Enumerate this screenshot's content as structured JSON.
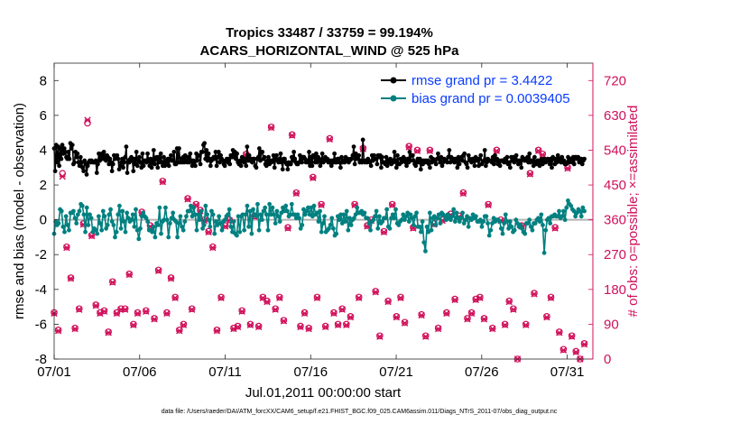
{
  "chart_data": {
    "type": "line",
    "title": "Tropics 33487 / 33759 = 99.194%",
    "subtitle": "ACARS_HORIZONTAL_WIND @ 525 hPa",
    "xlabel": "Jul.01,2011 00:00:00 start",
    "ylabel_left": "rmse and bias (model - observation)",
    "ylabel_right": "# of obs: o=possible; ×=assimilated",
    "footnote": "data file: /Users/raeder/DAI/ATM_forcXX/CAM6_setup/f.e21.FHIST_BGC.f09_025.CAM6assim.011/Diags_NTrS_2011-07/obs_diag_output.nc",
    "xlim": [
      0,
      31.5
    ],
    "ylim_left": [
      -8,
      9
    ],
    "ylim_right": [
      0,
      765
    ],
    "x_ticks": [
      0,
      5,
      10,
      15,
      20,
      25,
      30
    ],
    "x_tick_labels": [
      "07/01",
      "07/06",
      "07/11",
      "07/16",
      "07/21",
      "07/26",
      "07/31"
    ],
    "y_ticks_left": [
      -8,
      -6,
      -4,
      -2,
      0,
      2,
      4,
      6,
      8
    ],
    "y_tick_labels_left": [
      "-8",
      "-6",
      "-4",
      "-2",
      "0",
      "2",
      "4",
      "6",
      "8"
    ],
    "y_ticks_right": [
      0,
      90,
      180,
      270,
      360,
      450,
      540,
      630,
      720
    ],
    "y_tick_labels_right": [
      "0",
      "90",
      "180",
      "270",
      "360",
      "450",
      "540",
      "630",
      "720"
    ],
    "legend": [
      {
        "label": "rmse grand pr = 3.4422",
        "color": "#000000"
      },
      {
        "label": "bias grand pr = 0.0039405",
        "color": "#008080"
      }
    ],
    "colors": {
      "rmse": "#000000",
      "bias": "#008080",
      "obs": "#d0105a",
      "zero": "#b4b4b4",
      "right_axis": "#d0105a"
    },
    "x_step_days": 0.25,
    "series": [
      {
        "name": "rmse",
        "axis": "left",
        "values": [
          4.1,
          2.8,
          4.3,
          3.3,
          4.2,
          3.1,
          4.1,
          3.5,
          4.3,
          3.8,
          4.1,
          3.9,
          3.6,
          3.5,
          3.9,
          3.5,
          4.4,
          4.1,
          4.3,
          3.2,
          3.3,
          3.9,
          3.6,
          3.8,
          3.3,
          3.1,
          3.6,
          3.3,
          3.0,
          2.8,
          3.4,
          3.2,
          2.6,
          3.1,
          3.3,
          3.4,
          3.3,
          3.4,
          3.3,
          3.3,
          3.3,
          3.4,
          2.7,
          3.2,
          3.8,
          3.4,
          3.7,
          3.8,
          3.5,
          3.9,
          3.6,
          3.4,
          3.7,
          3.6,
          3.2,
          3.5,
          3.3,
          2.8,
          3.2,
          3.7,
          3.5,
          3.6,
          3.7,
          3.5,
          2.9,
          3.1,
          3.3,
          3.5,
          3.0,
          3.3,
          3.6,
          4.2,
          2.7,
          3.4,
          3.3,
          3.5,
          3.6,
          3.4,
          2.8,
          3.5,
          3.2,
          3.9,
          3.1,
          3.4,
          3.6,
          3.3,
          3.0,
          3.8,
          3.1,
          3.4,
          3.4,
          3.3,
          3.8,
          3.4,
          3.1,
          3.5,
          3.0,
          3.3,
          4.0,
          3.2,
          3.5,
          3.6,
          3.0,
          3.6,
          3.3,
          3.8,
          3.3,
          3.1,
          3.6,
          3.1,
          3.4,
          3.2,
          3.5,
          3.1,
          3.5,
          3.7,
          3.4,
          3.4,
          3.9,
          3.2,
          3.2,
          4.1,
          3.3,
          4.1,
          3.3,
          3.5,
          3.3,
          3.6,
          3.3,
          3.7,
          3.4,
          3.3,
          3.6,
          3.3,
          3.8,
          3.4,
          3.1,
          3.4,
          3.3,
          3.1,
          3.8,
          3.4,
          3.7,
          3.7,
          3.2,
          3.9,
          3.9,
          4.3,
          4.4,
          3.5,
          4.0,
          3.4,
          3.8,
          3.5,
          3.1,
          3.4,
          3.5,
          3.6,
          3.5,
          3.9,
          3.1,
          3.6,
          3.9,
          3.3,
          3.7,
          3.5,
          3.4,
          3.2,
          3.1,
          3.4,
          3.5,
          3.3,
          3.5,
          3.2,
          3.7,
          3.6,
          4.0,
          3.6,
          3.9,
          3.5,
          3.8,
          3.3,
          3.2,
          3.4,
          3.1,
          3.6,
          3.4,
          3.3,
          3.5,
          3.1,
          4.2,
          3.4,
          3.7,
          3.4,
          3.5,
          3.3,
          3.5,
          3.5,
          3.1,
          3.0,
          3.5,
          3.6,
          4.1,
          3.4,
          3.9,
          3.9,
          3.5,
          3.6,
          3.2,
          3.1,
          3.4,
          3.6,
          3.2,
          3.4,
          3.3,
          3.4,
          3.7,
          3.0,
          3.5,
          3.7,
          3.4,
          3.3,
          3.5,
          3.8,
          3.3,
          2.9,
          3.5,
          3.5,
          3.3,
          3.2,
          2.9,
          3.3,
          3.2,
          3.2,
          3.6,
          3.4,
          3.9,
          3.5,
          3.3,
          3.2,
          3.2,
          3.3,
          3.7,
          3.5,
          3.3,
          3.6,
          3.6,
          3.5,
          3.3,
          3.4,
          3.3,
          3.9,
          3.1,
          3.6,
          3.1,
          3.7,
          3.6,
          3.3,
          3.8,
          3.3,
          3.6,
          3.5,
          3.1,
          3.3,
          3.8,
          3.3,
          3.4,
          3.6,
          3.4,
          3.5,
          3.3,
          3.3,
          3.4,
          3.1,
          3.4,
          3.3,
          3.8,
          3.3,
          3.3,
          3.5,
          3.5,
          3.3,
          3.0,
          3.6,
          3.3,
          3.4,
          3.3,
          3.6,
          3.4,
          3.5,
          3.3,
          3.4,
          3.5,
          3.5,
          3.7,
          4.2,
          3.2,
          3.8,
          3.5,
          3.5,
          3.7,
          3.3,
          3.4,
          3.3,
          4.6,
          3.4,
          3.3,
          3.4,
          3.3,
          3.5,
          3.4,
          3.3,
          3.1,
          3.7,
          3.4,
          3.7,
          3.5,
          3.5,
          3.2,
          3.7,
          3.6,
          3.7,
          3.0,
          3.6,
          3.3,
          3.3,
          3.2,
          3.6,
          3.1,
          3.4,
          3.3,
          3.5,
          3.2,
          3.4,
          3.3,
          3.9,
          3.4,
          3.0,
          3.7,
          3.2,
          3.2,
          3.5,
          3.3,
          3.4,
          3.6,
          3.5,
          3.3,
          3.1,
          3.5,
          3.3,
          3.9,
          3.4,
          3.7,
          3.7,
          3.4,
          3.2,
          3.1,
          3.3,
          3.5,
          3.3,
          3.5,
          2.9,
          3.4,
          3.2,
          3.4,
          3.3,
          3.4,
          3.3,
          3.4,
          3.2,
          3.0,
          3.6,
          3.3,
          3.5,
          3.4,
          3.4,
          3.2,
          3.5,
          3.8,
          3.5,
          3.3,
          3.6,
          3.1,
          3.3,
          3.5,
          3.4,
          3.4,
          3.3,
          3.6,
          4.0,
          3.3,
          3.6,
          3.4,
          3.5,
          3.3,
          3.5,
          3.4,
          3.0,
          3.6,
          3.2,
          3.5,
          3.6,
          3.4,
          3.7,
          3.8,
          3.3,
          3.2,
          3.0,
          3.7,
          3.5,
          3.4,
          3.3,
          3.5,
          3.5,
          3.1,
          3.6,
          3.4,
          3.5,
          3.1,
          3.5,
          3.7,
          3.2,
          3.3,
          3.4,
          4.0,
          3.1,
          3.3,
          3.5,
          3.4,
          3.4,
          3.4,
          3.3,
          3.6,
          3.2,
          3.7,
          3.4,
          3.5,
          3.2,
          3.4,
          3.1,
          3.4,
          3.4,
          3.4,
          3.3,
          3.5,
          3.3,
          3.6,
          3.2,
          3.3,
          3.0,
          3.6,
          3.4,
          3.6,
          3.3,
          3.5,
          3.7,
          3.4,
          3.2,
          3.4,
          3.4,
          3.0,
          3.6,
          3.5,
          3.4,
          3.5,
          3.4,
          3.6,
          3.3,
          3.8,
          3.3,
          3.4,
          3.4,
          3.1,
          3.6,
          3.3,
          3.2,
          3.4,
          3.4,
          3.1,
          3.4,
          3.5,
          3.2,
          3.4,
          3.5,
          3.3,
          3.4,
          3.5,
          3.4,
          3.2,
          3.5,
          3.0,
          3.6,
          3.5,
          3.2,
          3.5,
          3.3,
          3.7,
          3.4,
          3.5,
          3.3,
          3.6,
          3.3,
          3.4,
          3.2,
          3.2,
          3.3,
          3.6,
          3.3,
          3.5,
          3.5,
          3.3,
          3.6,
          3.2,
          3.6,
          3.6,
          3.5,
          3.6,
          3.3,
          3.4,
          3.5,
          3.2,
          3.4,
          3.5
        ]
      },
      {
        "name": "bias",
        "axis": "left",
        "values": [
          -0.8,
          -0.1,
          -0.3,
          -0.2,
          0.6,
          0.5,
          -0.4,
          -0.7,
          0.2,
          -0.3,
          -0.6,
          0.4,
          0.4,
          0.5,
          0.1,
          -0.2,
          0.3,
          0.5,
          0.9,
          0.8,
          0.3,
          -0.7,
          0.7,
          -0.3,
          0.3,
          0.1,
          -0.7,
          -0.5,
          -0.6,
          -0.8,
          0.2,
          -0.2,
          -0.6,
          0.5,
          0.2,
          -0.5,
          -0.3,
          0.3,
          0.6,
          -0.1,
          -0.3,
          -1.0,
          -0.7,
          0.3,
          0.8,
          -0.5,
          0.5,
          -0.1,
          -0.7,
          0.4,
          0.1,
          -0.1,
          0.0,
          0.3,
          -0.4,
          0.6,
          -0.6,
          -1.1,
          -0.5,
          0.2,
          0.4,
          0.2,
          0.1,
          -0.1,
          -0.6,
          -0.6,
          -0.7,
          -0.4,
          -1.0,
          -0.2,
          -0.3,
          0.7,
          -0.8,
          -0.1,
          0.0,
          0.7,
          0.0,
          -1.0,
          -0.2,
          0.1,
          0.4,
          0.0,
          -0.1,
          -1.0,
          -0.2,
          0.2,
          -0.4,
          -0.6,
          -0.1,
          0.2,
          0.5,
          0.5,
          0.8,
          0.2,
          0.7,
          0.3,
          -0.6,
          0.3,
          0.0,
          0.5,
          -0.5,
          -0.3,
          0.8,
          0.3,
          0.0,
          -0.4,
          0.5,
          0.3,
          -0.8,
          -0.1,
          -0.3,
          0.2,
          -0.2,
          -0.6,
          -0.1,
          0.0,
          0.2,
          0.3,
          0.6,
          -0.4,
          -0.7,
          -0.1,
          -0.8,
          -0.9,
          0.2,
          -0.7,
          0.2,
          0.3,
          -0.6,
          0.3,
          0.8,
          -0.4,
          0.5,
          -0.8,
          0.6,
          0.3,
          0.2,
          0.9,
          -0.6,
          0.3,
          0.0,
          0.5,
          0.7,
          0.3,
          -0.6,
          0.9,
          0.3,
          0.7,
          0.3,
          -0.2,
          0.5,
          0.2,
          -0.1,
          0.4,
          0.7,
          0.5,
          0.8,
          0.5,
          0.2,
          0.3,
          0.9,
          0.3,
          0.3,
          0.1,
          0.3,
          0.1,
          -0.5,
          -0.3,
          0.6,
          0.3,
          0.5,
          0.7,
          0.3,
          0.7,
          0.2,
          0.8,
          0.3,
          0.4,
          -0.1,
          0.5,
          -0.7,
          -0.2,
          0.2,
          -0.7,
          -0.6,
          -0.5,
          -0.3,
          0.1,
          -0.5,
          -0.9,
          -0.8,
          0.2,
          0.0,
          0.3,
          -0.2,
          0.3,
          -0.1,
          0.5,
          -0.6,
          0.1,
          -0.3,
          0.0,
          0.1,
          0.3,
          0.7,
          0.4,
          0.4,
          0.5,
          0.3,
          0.4,
          0.1,
          0.1,
          -0.2,
          -0.6,
          -0.1,
          0.0,
          0.2,
          0.5,
          -0.5,
          0.2,
          -0.2,
          -0.1,
          0.1,
          0.1,
          0.6,
          -0.4,
          -0.5,
          0.1,
          0.3,
          0.1,
          0.6,
          -0.2,
          -0.3,
          -0.1,
          0.0,
          0.3,
          0.0,
          0.2,
          0.4,
          -0.1,
          0.3,
          0.1,
          -0.3,
          0.2,
          0.4,
          -0.4,
          -0.4,
          -0.7,
          -0.1,
          -1.3,
          -1.8,
          -0.4,
          -0.7,
          0.4,
          -0.6,
          0.1,
          0.2,
          -0.3,
          0.1,
          0.3,
          -0.2,
          0.4,
          0.3,
          0.2,
          0.0,
          0.3,
          0.1,
          0.0,
          0.2,
          0.6,
          -0.1,
          0.4,
          0.1,
          -0.1,
          0.1,
          0.4,
          -0.2,
          0.0,
          0.2,
          -0.4,
          0.1,
          0.0,
          0.3,
          0.1,
          0.2,
          -0.1,
          -0.1,
          0.0,
          -0.4,
          -0.1,
          0.2,
          0.2,
          -0.2,
          -0.9,
          -0.6,
          -0.2,
          0.1,
          -0.1,
          0.0,
          0.0,
          -0.1,
          -0.5,
          -0.8,
          -0.2,
          0.3,
          -0.1,
          -0.5,
          -0.1,
          -0.4,
          -0.7,
          -0.6,
          0.0,
          -0.2,
          -0.4,
          -0.3,
          -0.5,
          -0.7,
          -0.8,
          -0.2,
          -0.2,
          0.0,
          -0.4,
          -0.6,
          -0.2,
          -0.2,
          0.0,
          0.1,
          -0.1,
          0.3,
          -0.3,
          -1.9,
          -0.6,
          0.0,
          0.1,
          -0.2,
          0.2,
          0.2,
          0.3,
          0.2,
          0.2,
          0.5,
          0.1,
          0.2,
          0.5,
          0.0,
          0.7,
          1.1,
          0.9,
          0.8,
          0.6,
          0.5,
          0.2,
          0.4,
          0.6,
          0.5,
          0.2,
          0.7,
          0.5
        ]
      },
      {
        "name": "obs_possible",
        "axis": "right",
        "values": [
          120,
          75,
          480,
          290,
          210,
          80,
          130,
          350,
          610,
          320,
          140,
          120,
          125,
          70,
          200,
          120,
          130,
          130,
          220,
          90,
          120,
          380,
          125,
          345,
          105,
          230,
          460,
          120,
          210,
          160,
          75,
          90,
          415,
          130,
          400,
          385,
          360,
          330,
          290,
          75,
          160,
          345,
          360,
          80,
          85,
          125,
          530,
          90,
          370,
          85,
          160,
          150,
          600,
          130,
          160,
          100,
          340,
          580,
          430,
          85,
          120,
          80,
          470,
          160,
          400,
          85,
          570,
          120,
          90,
          130,
          90,
          110,
          400,
          160,
          545,
          345,
          360,
          175,
          60,
          330,
          150,
          400,
          110,
          160,
          95,
          550,
          340,
          540,
          115,
          60,
          540,
          350,
          80,
          360,
          120,
          375,
          155,
          370,
          430,
          105,
          120,
          155,
          160,
          105,
          400,
          80,
          540,
          360,
          90,
          150,
          130,
          0,
          345,
          90,
          480,
          170,
          540,
          530,
          110,
          160,
          340,
          70,
          25,
          495,
          60,
          20,
          0,
          40
        ]
      },
      {
        "name": "obs_assimilated",
        "axis": "right",
        "values": [
          118,
          73,
          472,
          288,
          208,
          78,
          128,
          348,
          618,
          318,
          138,
          118,
          123,
          68,
          198,
          118,
          128,
          128,
          218,
          88,
          118,
          378,
          123,
          343,
          103,
          228,
          458,
          118,
          208,
          158,
          73,
          88,
          413,
          128,
          398,
          383,
          358,
          328,
          288,
          73,
          158,
          343,
          358,
          78,
          83,
          123,
          528,
          88,
          368,
          83,
          158,
          148,
          598,
          128,
          158,
          98,
          338,
          578,
          428,
          83,
          118,
          78,
          468,
          158,
          398,
          83,
          568,
          118,
          88,
          128,
          88,
          108,
          398,
          158,
          543,
          343,
          358,
          173,
          58,
          328,
          148,
          398,
          108,
          158,
          93,
          548,
          338,
          538,
          113,
          58,
          538,
          348,
          78,
          358,
          118,
          373,
          153,
          368,
          428,
          103,
          118,
          153,
          158,
          103,
          398,
          78,
          538,
          358,
          88,
          148,
          128,
          0,
          343,
          88,
          478,
          168,
          538,
          528,
          108,
          158,
          338,
          68,
          23,
          493,
          58,
          18,
          0,
          38
        ]
      }
    ]
  }
}
